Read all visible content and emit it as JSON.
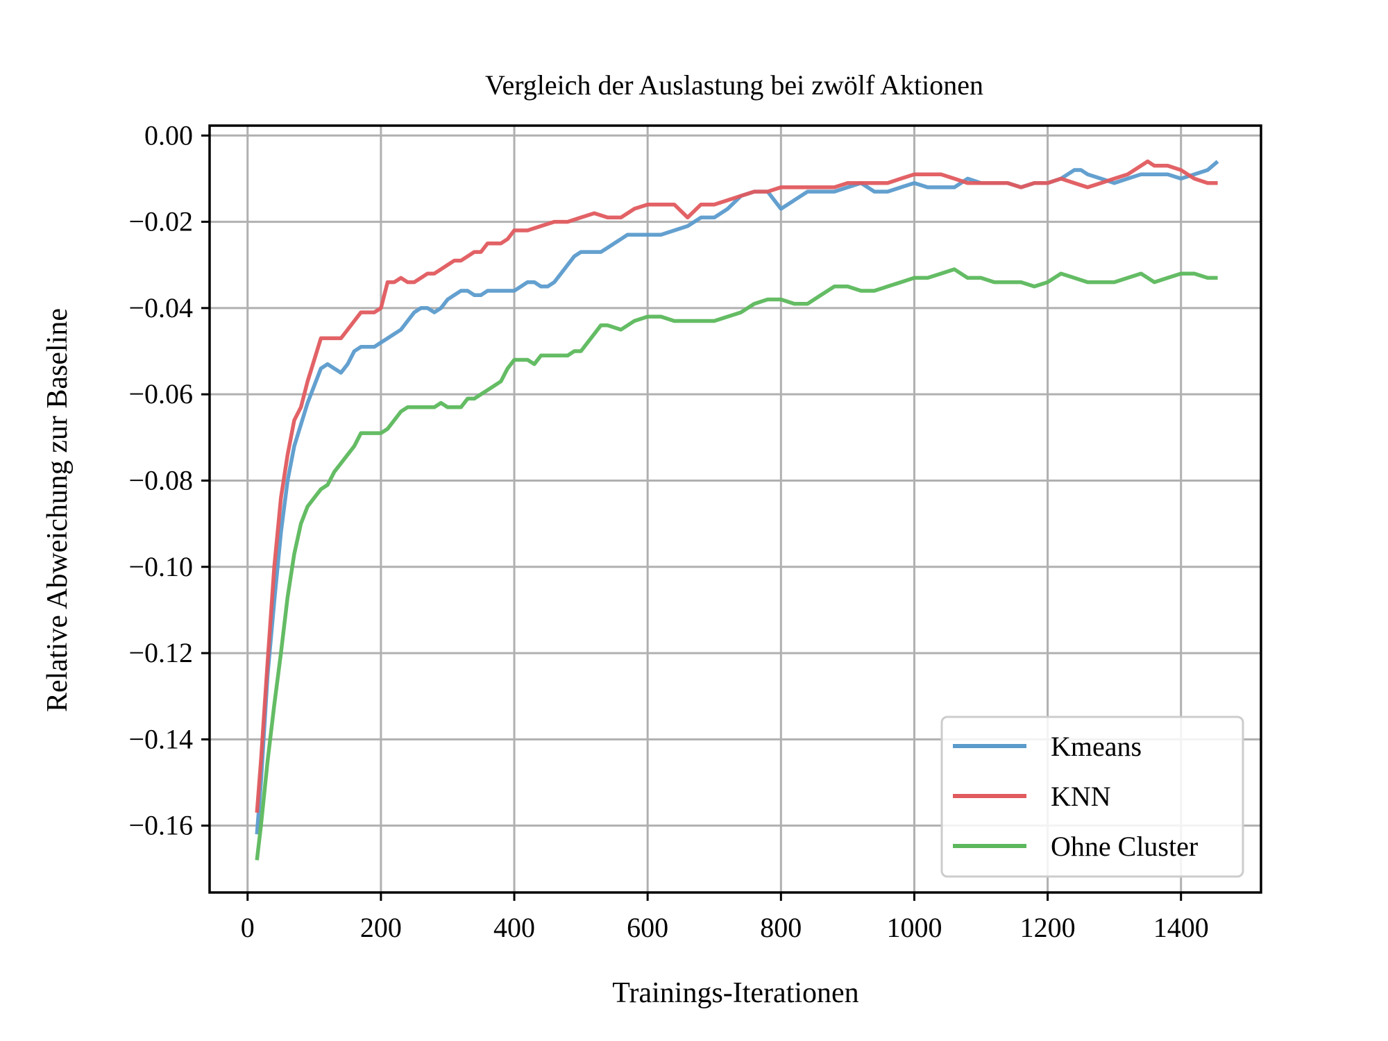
{
  "chart_data": {
    "type": "line",
    "title": "Vergleich der Auslastung bei zwölf Aktionen",
    "xlabel": "Trainings-Iterationen",
    "ylabel": "Relative Abweichung zur Baseline",
    "xlim": [
      -57,
      1520
    ],
    "ylim": [
      -0.1755,
      0.0023
    ],
    "x_ticks": [
      0,
      200,
      400,
      600,
      800,
      1000,
      1200,
      1400
    ],
    "y_ticks": [
      0.0,
      -0.02,
      -0.04,
      -0.06,
      -0.08,
      -0.1,
      -0.12,
      -0.14,
      -0.16
    ],
    "y_tick_labels": [
      "0.00",
      "−0.02",
      "−0.04",
      "−0.06",
      "−0.08",
      "−0.10",
      "−0.12",
      "−0.14",
      "−0.16"
    ],
    "grid": true,
    "legend_position": "lower-right",
    "series": [
      {
        "name": "Kmeans",
        "color": "#5b9bcc",
        "x": [
          14,
          20,
          30,
          40,
          50,
          60,
          70,
          80,
          90,
          100,
          110,
          120,
          130,
          140,
          150,
          160,
          170,
          180,
          190,
          200,
          210,
          220,
          230,
          240,
          250,
          260,
          270,
          280,
          290,
          300,
          310,
          320,
          330,
          340,
          350,
          360,
          370,
          380,
          390,
          400,
          410,
          420,
          430,
          440,
          450,
          460,
          470,
          480,
          490,
          500,
          510,
          520,
          530,
          540,
          550,
          560,
          570,
          580,
          590,
          600,
          610,
          620,
          640,
          660,
          680,
          700,
          720,
          740,
          760,
          780,
          800,
          820,
          840,
          860,
          880,
          900,
          920,
          940,
          960,
          980,
          1000,
          1020,
          1040,
          1060,
          1080,
          1100,
          1120,
          1140,
          1160,
          1180,
          1200,
          1220,
          1240,
          1250,
          1260,
          1280,
          1300,
          1320,
          1340,
          1360,
          1380,
          1400,
          1420,
          1440,
          1455
        ],
        "y": [
          -0.162,
          -0.15,
          -0.125,
          -0.108,
          -0.092,
          -0.08,
          -0.072,
          -0.067,
          -0.062,
          -0.058,
          -0.054,
          -0.053,
          -0.054,
          -0.055,
          -0.053,
          -0.05,
          -0.049,
          -0.049,
          -0.049,
          -0.048,
          -0.047,
          -0.046,
          -0.045,
          -0.043,
          -0.041,
          -0.04,
          -0.04,
          -0.041,
          -0.04,
          -0.038,
          -0.037,
          -0.036,
          -0.036,
          -0.037,
          -0.037,
          -0.036,
          -0.036,
          -0.036,
          -0.036,
          -0.036,
          -0.035,
          -0.034,
          -0.034,
          -0.035,
          -0.035,
          -0.034,
          -0.032,
          -0.03,
          -0.028,
          -0.027,
          -0.027,
          -0.027,
          -0.027,
          -0.026,
          -0.025,
          -0.024,
          -0.023,
          -0.023,
          -0.023,
          -0.023,
          -0.023,
          -0.023,
          -0.022,
          -0.021,
          -0.019,
          -0.019,
          -0.017,
          -0.014,
          -0.013,
          -0.013,
          -0.017,
          -0.015,
          -0.013,
          -0.013,
          -0.013,
          -0.012,
          -0.011,
          -0.013,
          -0.013,
          -0.012,
          -0.011,
          -0.012,
          -0.012,
          -0.012,
          -0.01,
          -0.011,
          -0.011,
          -0.011,
          -0.012,
          -0.011,
          -0.011,
          -0.01,
          -0.008,
          -0.008,
          -0.009,
          -0.01,
          -0.011,
          -0.01,
          -0.009,
          -0.009,
          -0.009,
          -0.01,
          -0.009,
          -0.008,
          -0.006
        ]
      },
      {
        "name": "KNN",
        "color": "#e05a5e",
        "x": [
          14,
          20,
          30,
          40,
          50,
          60,
          70,
          80,
          90,
          100,
          110,
          120,
          130,
          140,
          150,
          160,
          170,
          180,
          190,
          200,
          210,
          220,
          230,
          240,
          250,
          260,
          270,
          280,
          290,
          300,
          310,
          320,
          330,
          340,
          350,
          360,
          370,
          380,
          390,
          400,
          420,
          440,
          460,
          480,
          500,
          520,
          540,
          560,
          580,
          600,
          620,
          640,
          660,
          680,
          700,
          720,
          740,
          760,
          780,
          800,
          820,
          840,
          860,
          880,
          900,
          920,
          940,
          960,
          980,
          1000,
          1020,
          1040,
          1060,
          1080,
          1100,
          1120,
          1140,
          1160,
          1180,
          1200,
          1220,
          1240,
          1260,
          1280,
          1300,
          1320,
          1340,
          1350,
          1360,
          1380,
          1400,
          1420,
          1440,
          1455
        ],
        "y": [
          -0.157,
          -0.145,
          -0.122,
          -0.1,
          -0.084,
          -0.074,
          -0.066,
          -0.063,
          -0.057,
          -0.052,
          -0.047,
          -0.047,
          -0.047,
          -0.047,
          -0.045,
          -0.043,
          -0.041,
          -0.041,
          -0.041,
          -0.04,
          -0.034,
          -0.034,
          -0.033,
          -0.034,
          -0.034,
          -0.033,
          -0.032,
          -0.032,
          -0.031,
          -0.03,
          -0.029,
          -0.029,
          -0.028,
          -0.027,
          -0.027,
          -0.025,
          -0.025,
          -0.025,
          -0.024,
          -0.022,
          -0.022,
          -0.021,
          -0.02,
          -0.02,
          -0.019,
          -0.018,
          -0.019,
          -0.019,
          -0.017,
          -0.016,
          -0.016,
          -0.016,
          -0.019,
          -0.016,
          -0.016,
          -0.015,
          -0.014,
          -0.013,
          -0.013,
          -0.012,
          -0.012,
          -0.012,
          -0.012,
          -0.012,
          -0.011,
          -0.011,
          -0.011,
          -0.011,
          -0.01,
          -0.009,
          -0.009,
          -0.009,
          -0.01,
          -0.011,
          -0.011,
          -0.011,
          -0.011,
          -0.012,
          -0.011,
          -0.011,
          -0.01,
          -0.011,
          -0.012,
          -0.011,
          -0.01,
          -0.009,
          -0.007,
          -0.006,
          -0.007,
          -0.007,
          -0.008,
          -0.01,
          -0.011,
          -0.011
        ]
      },
      {
        "name": "Ohne Cluster",
        "color": "#5cb85c",
        "x": [
          14,
          20,
          30,
          40,
          50,
          60,
          70,
          80,
          90,
          100,
          110,
          120,
          130,
          140,
          150,
          160,
          170,
          180,
          190,
          200,
          210,
          220,
          230,
          240,
          250,
          260,
          270,
          280,
          290,
          300,
          310,
          320,
          330,
          340,
          350,
          360,
          370,
          380,
          390,
          400,
          410,
          420,
          430,
          440,
          450,
          460,
          470,
          480,
          490,
          500,
          510,
          520,
          530,
          540,
          560,
          580,
          600,
          620,
          640,
          660,
          680,
          700,
          720,
          740,
          760,
          780,
          800,
          820,
          840,
          860,
          880,
          900,
          920,
          940,
          960,
          980,
          1000,
          1020,
          1040,
          1060,
          1080,
          1100,
          1120,
          1140,
          1160,
          1180,
          1200,
          1220,
          1240,
          1260,
          1280,
          1300,
          1320,
          1340,
          1360,
          1380,
          1400,
          1420,
          1440,
          1455
        ],
        "y": [
          -0.168,
          -0.16,
          -0.145,
          -0.132,
          -0.12,
          -0.107,
          -0.097,
          -0.09,
          -0.086,
          -0.084,
          -0.082,
          -0.081,
          -0.078,
          -0.076,
          -0.074,
          -0.072,
          -0.069,
          -0.069,
          -0.069,
          -0.069,
          -0.068,
          -0.066,
          -0.064,
          -0.063,
          -0.063,
          -0.063,
          -0.063,
          -0.063,
          -0.062,
          -0.063,
          -0.063,
          -0.063,
          -0.061,
          -0.061,
          -0.06,
          -0.059,
          -0.058,
          -0.057,
          -0.054,
          -0.052,
          -0.052,
          -0.052,
          -0.053,
          -0.051,
          -0.051,
          -0.051,
          -0.051,
          -0.051,
          -0.05,
          -0.05,
          -0.048,
          -0.046,
          -0.044,
          -0.044,
          -0.045,
          -0.043,
          -0.042,
          -0.042,
          -0.043,
          -0.043,
          -0.043,
          -0.043,
          -0.042,
          -0.041,
          -0.039,
          -0.038,
          -0.038,
          -0.039,
          -0.039,
          -0.037,
          -0.035,
          -0.035,
          -0.036,
          -0.036,
          -0.035,
          -0.034,
          -0.033,
          -0.033,
          -0.032,
          -0.031,
          -0.033,
          -0.033,
          -0.034,
          -0.034,
          -0.034,
          -0.035,
          -0.034,
          -0.032,
          -0.033,
          -0.034,
          -0.034,
          -0.034,
          -0.033,
          -0.032,
          -0.034,
          -0.033,
          -0.032,
          -0.032,
          -0.033,
          -0.033
        ]
      }
    ]
  }
}
